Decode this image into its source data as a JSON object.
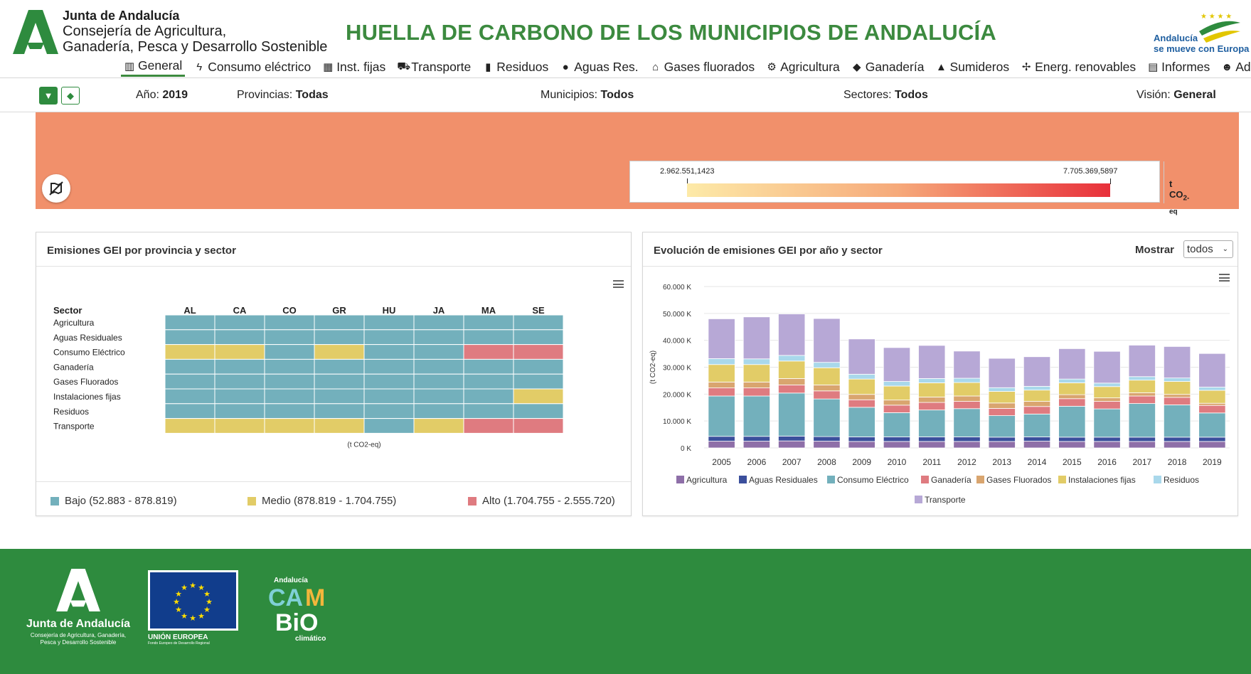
{
  "header": {
    "org_name": "Junta de Andalucía",
    "org_dept_line1": "Consejería de Agricultura,",
    "org_dept_line2": "Ganadería, Pesca y Desarrollo Sostenible",
    "title": "HUELLA DE CARBONO DE LOS MUNICIPIOS DE ANDALUCÍA",
    "eu_slogan_line1": "Andalucía",
    "eu_slogan_line2": "se mueve con Europa"
  },
  "nav": [
    {
      "label": "General",
      "icon": "chart-icon",
      "active": true
    },
    {
      "label": "Consumo eléctrico",
      "icon": "bolt-icon"
    },
    {
      "label": "Inst. fijas",
      "icon": "building-icon"
    },
    {
      "label": "Transporte",
      "icon": "car-icon"
    },
    {
      "label": "Residuos",
      "icon": "trash-icon"
    },
    {
      "label": "Aguas Res.",
      "icon": "drop-icon"
    },
    {
      "label": "Gases fluorados",
      "icon": "home-icon"
    },
    {
      "label": "Agricultura",
      "icon": "tractor-icon"
    },
    {
      "label": "Ganadería",
      "icon": "cow-icon"
    },
    {
      "label": "Sumideros",
      "icon": "tree-icon"
    },
    {
      "label": "Energ. renovables",
      "icon": "windmill-icon"
    },
    {
      "label": "Informes",
      "icon": "file-icon"
    },
    {
      "label": "Admin",
      "icon": "users-icon"
    }
  ],
  "filters": {
    "year_label": "Año:",
    "year_value": "2019",
    "prov_label": "Provincias:",
    "prov_value": "Todas",
    "mun_label": "Municipios:",
    "mun_value": "Todos",
    "sect_label": "Sectores:",
    "sect_value": "Todos",
    "vision_label": "Visión:",
    "vision_value": "General"
  },
  "map_legend": {
    "min": "2.962.551,1423",
    "max": "7.705.369,5897",
    "unit_main": "t CO",
    "unit_sub": "2-eq",
    "gradient_start": "#fdeaa8",
    "gradient_end": "#e8303a"
  },
  "heatmap_panel": {
    "title": "Emisiones GEI por provincia y sector",
    "row_header": "Sector",
    "unit": "(t CO2-eq)",
    "columns": [
      "AL",
      "CA",
      "CO",
      "GR",
      "HU",
      "JA",
      "MA",
      "SE"
    ],
    "rows": [
      "Agricultura",
      "Aguas Residuales",
      "Consumo Eléctrico",
      "Ganadería",
      "Gases Fluorados",
      "Instalaciones fijas",
      "Residuos",
      "Transporte"
    ],
    "levels": [
      [
        "B",
        "B",
        "B",
        "B",
        "B",
        "B",
        "B",
        "B"
      ],
      [
        "B",
        "B",
        "B",
        "B",
        "B",
        "B",
        "B",
        "B"
      ],
      [
        "M",
        "M",
        "B",
        "M",
        "B",
        "B",
        "A",
        "A"
      ],
      [
        "B",
        "B",
        "B",
        "B",
        "B",
        "B",
        "B",
        "B"
      ],
      [
        "B",
        "B",
        "B",
        "B",
        "B",
        "B",
        "B",
        "B"
      ],
      [
        "B",
        "B",
        "B",
        "B",
        "B",
        "B",
        "B",
        "M"
      ],
      [
        "B",
        "B",
        "B",
        "B",
        "B",
        "B",
        "B",
        "B"
      ],
      [
        "M",
        "M",
        "M",
        "M",
        "B",
        "M",
        "A",
        "A"
      ]
    ],
    "colors": {
      "B": "#73b0bc",
      "M": "#e2cc67",
      "A": "#df7b80"
    },
    "legend": [
      {
        "key": "B",
        "label": "Bajo (52.883 - 878.819)"
      },
      {
        "key": "M",
        "label": "Medio (878.819 - 1.704.755)"
      },
      {
        "key": "A",
        "label": "Alto (1.704.755 - 2.555.720)"
      }
    ]
  },
  "evolution_panel": {
    "title": "Evolución de emisiones GEI por año y sector",
    "show_label": "Mostrar",
    "show_value": "todos"
  },
  "chart_data": {
    "type": "bar",
    "stacked": true,
    "ylabel": "(t CO2-eq)",
    "ylim": [
      0,
      60000
    ],
    "yticks": [
      "0 K",
      "10.000 K",
      "20.000 K",
      "30.000 K",
      "40.000 K",
      "50.000 K",
      "60.000 K"
    ],
    "categories": [
      "2005",
      "2006",
      "2007",
      "2008",
      "2009",
      "2010",
      "2011",
      "2012",
      "2013",
      "2014",
      "2015",
      "2016",
      "2017",
      "2018",
      "2019"
    ],
    "series": [
      {
        "name": "Agricultura",
        "color": "#8e6fa8",
        "values": [
          2500,
          2500,
          2600,
          2500,
          2400,
          2400,
          2400,
          2400,
          2400,
          2500,
          2400,
          2400,
          2400,
          2400,
          2400
        ]
      },
      {
        "name": "Aguas Residuales",
        "color": "#3b4f9c",
        "values": [
          1800,
          1800,
          1800,
          1700,
          1700,
          1700,
          1700,
          1700,
          1600,
          1600,
          1600,
          1600,
          1600,
          1600,
          1600
        ]
      },
      {
        "name": "Consumo Eléctrico",
        "color": "#73b0bc",
        "values": [
          15000,
          15000,
          16000,
          14000,
          11000,
          9000,
          10000,
          10500,
          8000,
          8500,
          11500,
          10500,
          12500,
          12000,
          9000
        ]
      },
      {
        "name": "Ganadería",
        "color": "#df7b80",
        "values": [
          3000,
          3000,
          3000,
          3000,
          2800,
          2800,
          2800,
          2700,
          2700,
          2800,
          2800,
          2800,
          2800,
          2800,
          2800
        ]
      },
      {
        "name": "Gases Fluorados",
        "color": "#d9a56f",
        "values": [
          2200,
          2200,
          2400,
          2200,
          2000,
          1900,
          2000,
          2000,
          2000,
          1900,
          1500,
          1300,
          1200,
          1100,
          800
        ]
      },
      {
        "name": "Instalaciones fijas",
        "color": "#e2cc67",
        "values": [
          6500,
          6500,
          6500,
          6400,
          5700,
          5200,
          5300,
          5000,
          4300,
          4200,
          4400,
          4200,
          4700,
          4800,
          4800
        ]
      },
      {
        "name": "Residuos",
        "color": "#a9d8eb",
        "values": [
          2200,
          2100,
          2100,
          2000,
          1800,
          1700,
          1600,
          1600,
          1400,
          1400,
          1400,
          1300,
          1300,
          1300,
          1200
        ]
      },
      {
        "name": "Transporte",
        "color": "#b7a8d6",
        "values": [
          14800,
          15600,
          15400,
          16300,
          13100,
          12600,
          12300,
          10100,
          10900,
          11000,
          11300,
          11800,
          11700,
          11700,
          12500
        ]
      }
    ]
  }
}
